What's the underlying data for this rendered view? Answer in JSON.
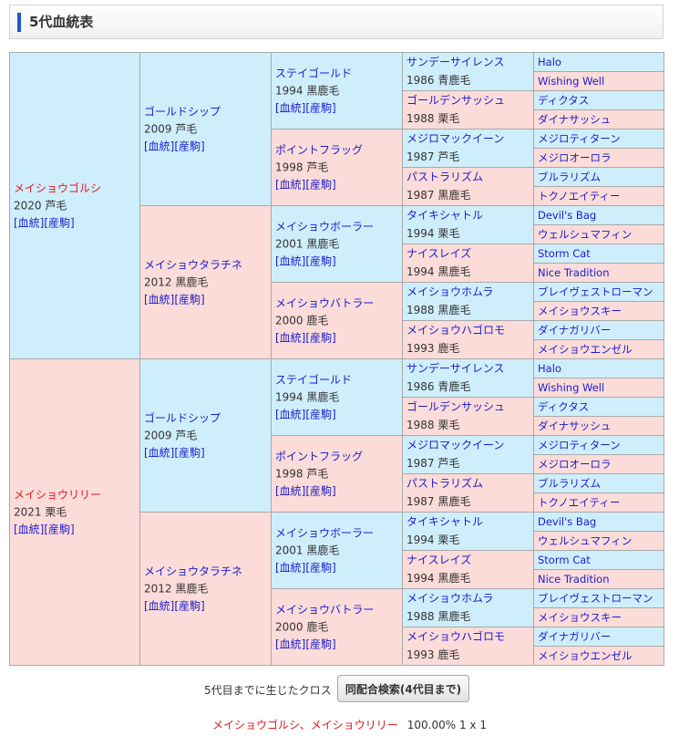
{
  "header": {
    "title": "5代血統表"
  },
  "links": {
    "pedigree": "[血統]",
    "horse": "[産駒]"
  },
  "pedigree": {
    "gen1": [
      {
        "name": "メイショウゴルシ",
        "year": "2020",
        "color": "芦毛"
      },
      {
        "name": "メイショウリリー",
        "year": "2021",
        "color": "栗毛"
      }
    ],
    "gen2": [
      {
        "name": "ゴールドシップ",
        "year": "2009",
        "color": "芦毛"
      },
      {
        "name": "メイショウタラチネ",
        "year": "2012",
        "color": "黒鹿毛"
      },
      {
        "name": "ゴールドシップ",
        "year": "2009",
        "color": "芦毛"
      },
      {
        "name": "メイショウタラチネ",
        "year": "2012",
        "color": "黒鹿毛"
      }
    ],
    "gen3": [
      {
        "name": "ステイゴールド",
        "year": "1994",
        "color": "黒鹿毛"
      },
      {
        "name": "ポイントフラッグ",
        "year": "1998",
        "color": "芦毛"
      },
      {
        "name": "メイショウボーラー",
        "year": "2001",
        "color": "黒鹿毛"
      },
      {
        "name": "メイショウバトラー",
        "year": "2000",
        "color": "鹿毛"
      },
      {
        "name": "ステイゴールド",
        "year": "1994",
        "color": "黒鹿毛"
      },
      {
        "name": "ポイントフラッグ",
        "year": "1998",
        "color": "芦毛"
      },
      {
        "name": "メイショウボーラー",
        "year": "2001",
        "color": "黒鹿毛"
      },
      {
        "name": "メイショウバトラー",
        "year": "2000",
        "color": "鹿毛"
      }
    ],
    "gen4": [
      {
        "name": "サンデーサイレンス",
        "year": "1986",
        "color": "青鹿毛"
      },
      {
        "name": "ゴールデンサッシュ",
        "year": "1988",
        "color": "栗毛"
      },
      {
        "name": "メジロマックイーン",
        "year": "1987",
        "color": "芦毛"
      },
      {
        "name": "パストラリズム",
        "year": "1987",
        "color": "黒鹿毛"
      },
      {
        "name": "タイキシャトル",
        "year": "1994",
        "color": "栗毛"
      },
      {
        "name": "ナイスレイズ",
        "year": "1994",
        "color": "黒鹿毛"
      },
      {
        "name": "メイショウホムラ",
        "year": "1988",
        "color": "黒鹿毛"
      },
      {
        "name": "メイショウハゴロモ",
        "year": "1993",
        "color": "鹿毛"
      },
      {
        "name": "サンデーサイレンス",
        "year": "1986",
        "color": "青鹿毛"
      },
      {
        "name": "ゴールデンサッシュ",
        "year": "1988",
        "color": "栗毛"
      },
      {
        "name": "メジロマックイーン",
        "year": "1987",
        "color": "芦毛"
      },
      {
        "name": "パストラリズム",
        "year": "1987",
        "color": "黒鹿毛"
      },
      {
        "name": "タイキシャトル",
        "year": "1994",
        "color": "栗毛"
      },
      {
        "name": "ナイスレイズ",
        "year": "1994",
        "color": "黒鹿毛"
      },
      {
        "name": "メイショウホムラ",
        "year": "1988",
        "color": "黒鹿毛"
      },
      {
        "name": "メイショウハゴロモ",
        "year": "1993",
        "color": "鹿毛"
      }
    ],
    "gen5": [
      "Halo",
      "Wishing Well",
      "ディクタス",
      "ダイナサッシュ",
      "メジロティターン",
      "メジロオーロラ",
      "ブルラリズム",
      "トクノエイティー",
      "Devil's Bag",
      "ウェルシュマフィン",
      "Storm Cat",
      "Nice Tradition",
      "ブレイヴェストローマン",
      "メイショウスキー",
      "ダイナガリバー",
      "メイショウエンゼル",
      "Halo",
      "Wishing Well",
      "ディクタス",
      "ダイナサッシュ",
      "メジロティターン",
      "メジロオーロラ",
      "ブルラリズム",
      "トクノエイティー",
      "Devil's Bag",
      "ウェルシュマフィン",
      "Storm Cat",
      "Nice Tradition",
      "ブレイヴェストローマン",
      "メイショウスキー",
      "ダイナガリバー",
      "メイショウエンゼル"
    ]
  },
  "cross": {
    "label": "5代目までに生じたクロス",
    "button": "同配合検索(4代目まで)",
    "result_names": "メイショウゴルシ、メイショウリリー",
    "result_value": "100.00%  1 x 1"
  },
  "colors": {
    "male_bg": "#cfeefb",
    "female_bg": "#fcdcd8",
    "link": "#1b1bd1",
    "highlight": "#e01919",
    "accent_bar": "#1f56c8"
  }
}
